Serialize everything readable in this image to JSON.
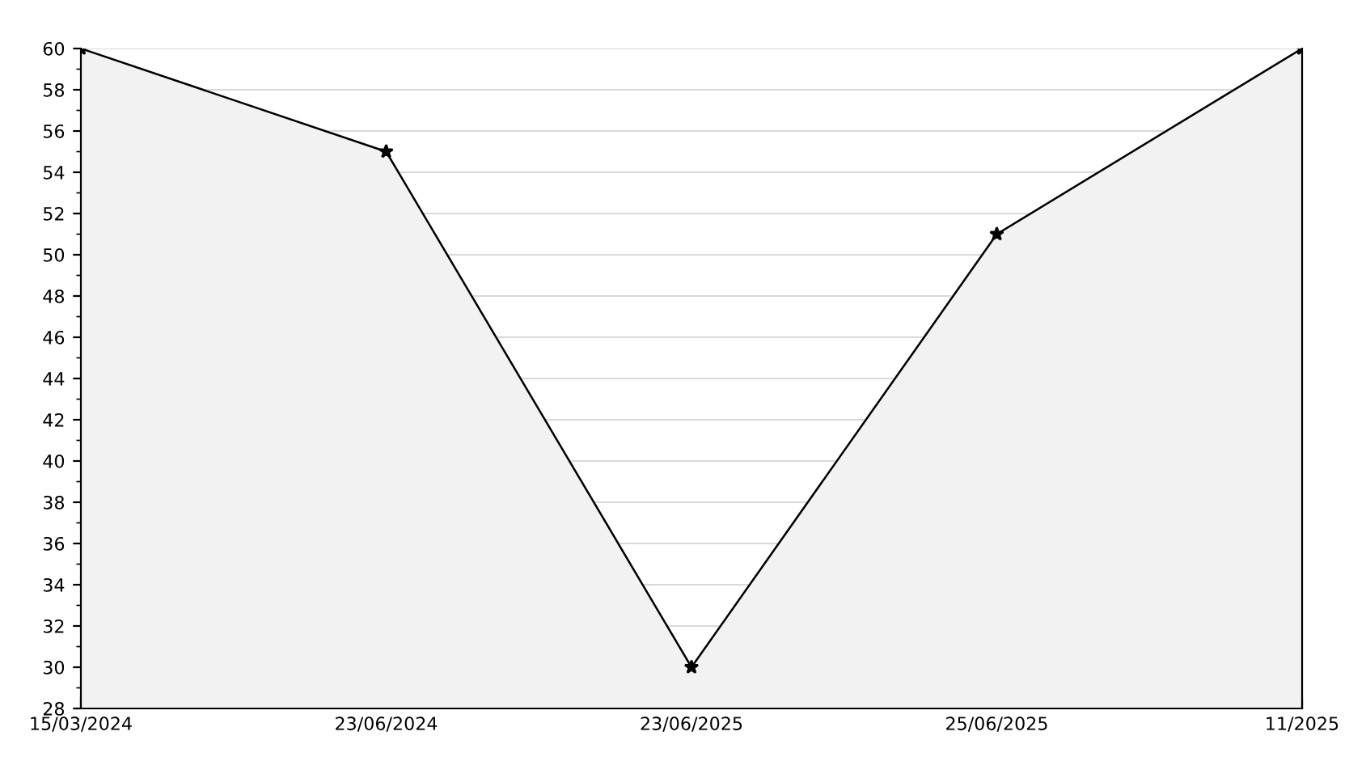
{
  "chart_data": {
    "type": "area",
    "categories": [
      "15/03/2024",
      "23/06/2024",
      "23/06/2025",
      "25/06/2025",
      "11/2025"
    ],
    "series": [
      {
        "color": "#000000",
        "values": [
          60,
          55,
          30,
          51,
          60
        ]
      }
    ],
    "ylim": [
      28,
      60
    ],
    "yticks": [
      28,
      30,
      32,
      34,
      36,
      38,
      40,
      42,
      44,
      46,
      48,
      50,
      52,
      54,
      56,
      58,
      60
    ],
    "grid": "y",
    "marker": "star",
    "line_style": "solid"
  }
}
